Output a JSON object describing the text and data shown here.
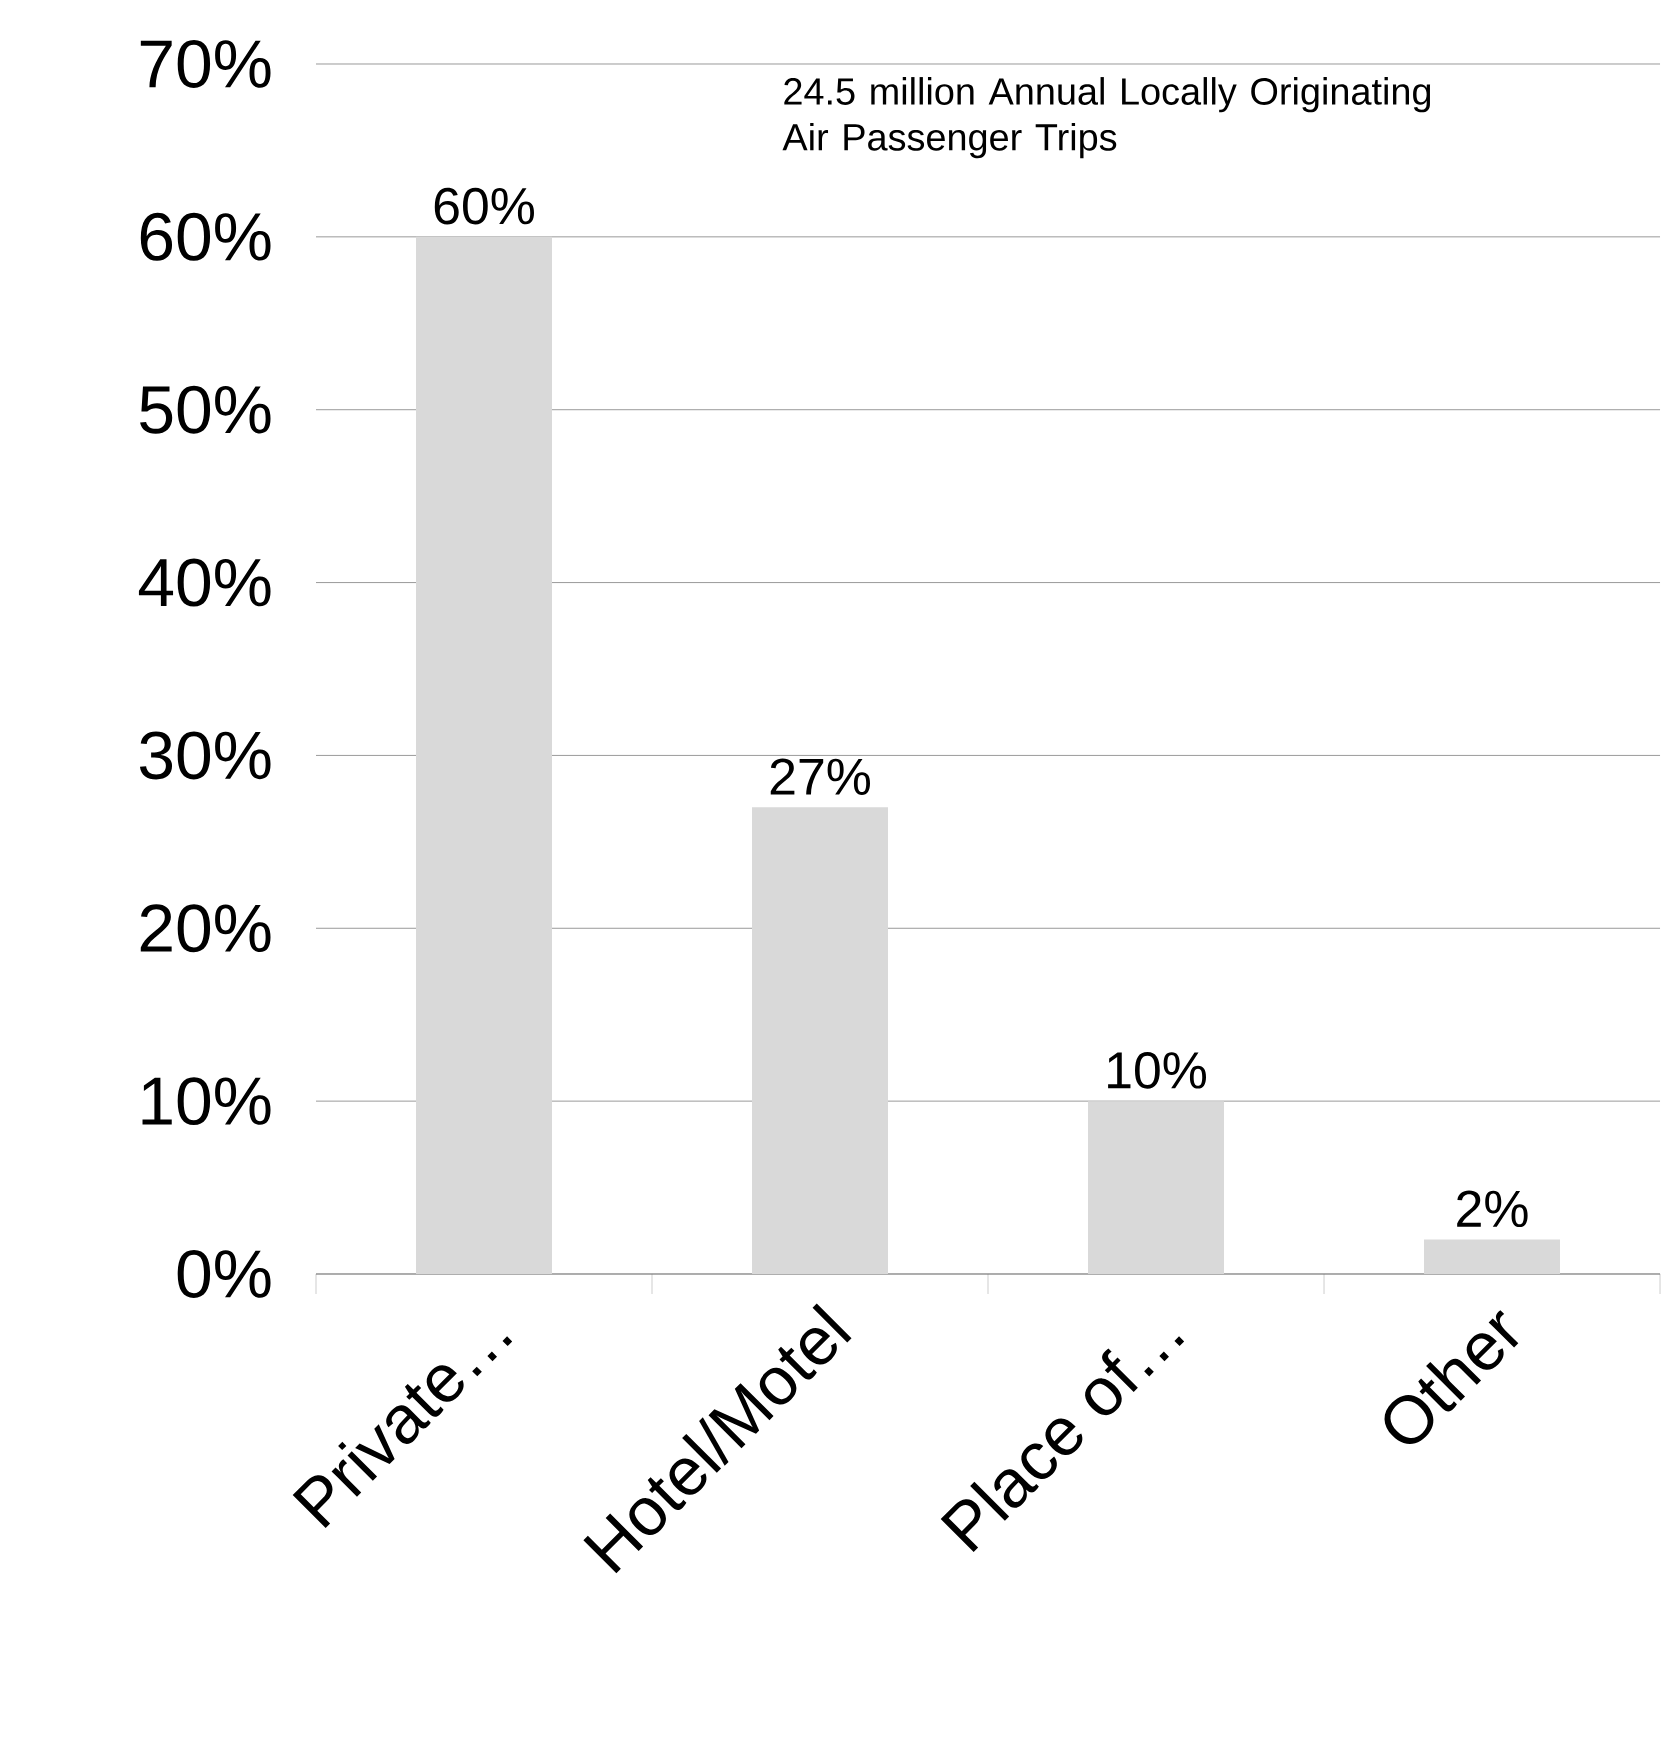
{
  "chart_data": {
    "type": "bar",
    "categories": [
      "Private…",
      "Hotel/Motel",
      "Place of…",
      "Other"
    ],
    "values": [
      60,
      27,
      10,
      2
    ],
    "value_labels": [
      "60%",
      "27%",
      "10%",
      "2%"
    ],
    "color": "#d9d9d9",
    "ylim": [
      0,
      70
    ],
    "yticks": [
      {
        "value": 0,
        "label": "0%"
      },
      {
        "value": 10,
        "label": "10%"
      },
      {
        "value": 20,
        "label": "20%"
      },
      {
        "value": 30,
        "label": "30%"
      },
      {
        "value": 40,
        "label": "40%"
      },
      {
        "value": 50,
        "label": "50%"
      },
      {
        "value": 60,
        "label": "60%"
      },
      {
        "value": 70,
        "label": "70%"
      }
    ],
    "grid": "y",
    "annotations": [
      "24.5 million Annual Locally Originating Air Passenger Trips"
    ]
  }
}
